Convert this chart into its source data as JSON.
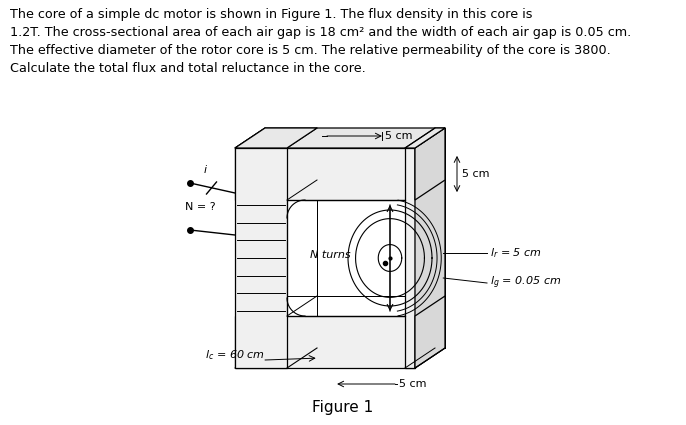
{
  "text_lines": [
    "The core of a simple dc motor is shown in Figure 1. The flux density in this core is",
    "1.2T. The cross-sectional area of each air gap is 18 cm² and the width of each air gap is 0.05 cm.",
    "The effective diameter of the rotor core is 5 cm. The relative permeability of the core is 3800.",
    "Calculate the total flux and total reluctance in the core."
  ],
  "figure_label": "Figure 1",
  "bg_color": "#ffffff",
  "line_color": "#000000",
  "core_face_color": "#f0f0f0",
  "core_side_color": "#d8d8d8",
  "core_top_color": "#e8e8e8"
}
